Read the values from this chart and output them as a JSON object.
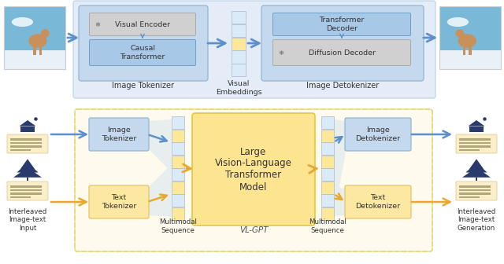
{
  "bg_color": "#ffffff",
  "top_panel_bg": "#dce8f5",
  "top_panel_ec": "#b8cfe8",
  "bot_panel_bg": "#fef9e8",
  "bot_panel_ec": "#e8d878",
  "box_blue": "#a8c8e8",
  "box_gray": "#d0d0d0",
  "box_yellow": "#fce490",
  "lvm_bg": "#fce490",
  "lvm_ec": "#e0c840",
  "funnel_blue": "#c8ddf0",
  "funnel_yellow": "#fce490",
  "token_blue": "#daeaf8",
  "token_yellow": "#fce898",
  "arrow_blue": "#5b90cc",
  "arrow_yellow": "#e8a830",
  "text_color": "#333333",
  "dog_sky": "#7ab0d8",
  "dog_snow": "#e8f0f8",
  "icon_dark": "#2a3a6a",
  "icon_yellow_bg": "#faefc8",
  "top_tok_label": "Image Tokenizer",
  "top_emb_label": "Visual\nEmbeddings",
  "top_detok_label": "Image Detokenizer",
  "ve_label": "Visual Encoder",
  "ct_label": "Causal\nTransformer",
  "td_label": "Transformer\nDecoder",
  "dd_label": "Diffusion Decoder",
  "img_tok_label": "Image\nTokenizer",
  "txt_tok_label": "Text\nTokenizer",
  "img_detok_label": "Image\nDetokenizer",
  "txt_detok_label": "Text\nDetokenizer",
  "lvm_label": "Large\nVision-Language\nTransformer\nModel",
  "seq_left_label": "Multimodal\nSequence",
  "seq_right_label": "Multimodal\nSequence",
  "left_caption": "Interleaved\nImage-text\nInput",
  "right_caption": "Interleaved\nImage-text\nGeneration",
  "vl_gpt_label": "VL-GPT"
}
